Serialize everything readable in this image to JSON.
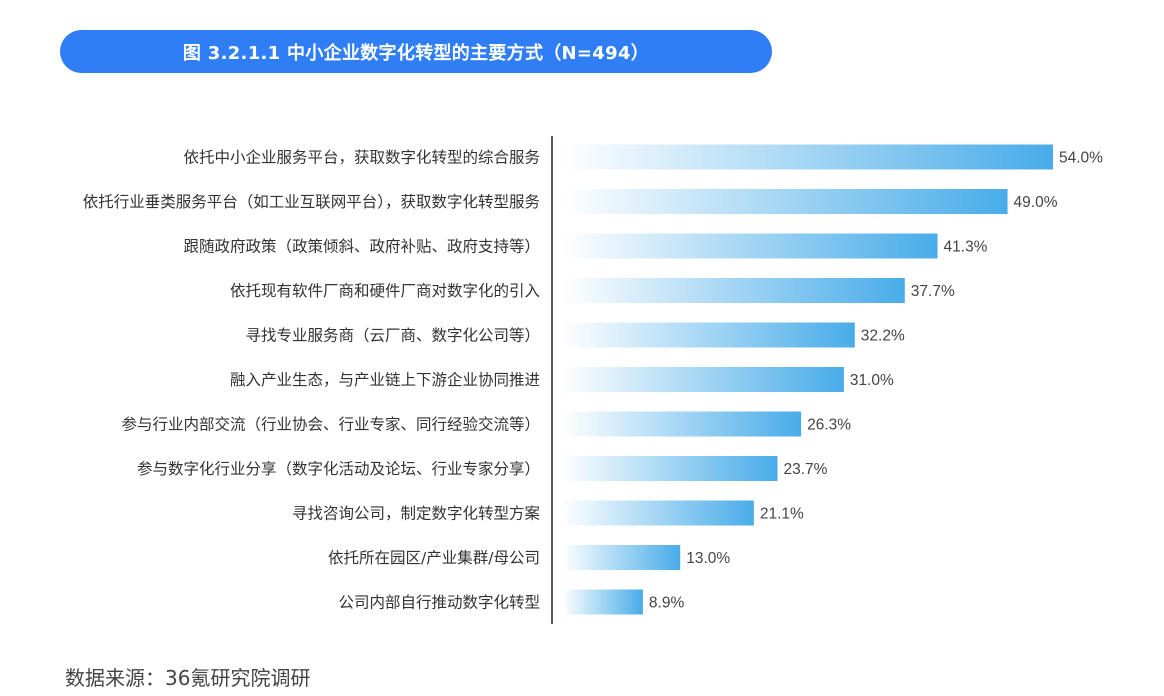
{
  "header": {
    "title": "图 3.2.1.1 中小企业数字化转型的主要方式（N=494）"
  },
  "chart_data": {
    "type": "bar",
    "orientation": "horizontal",
    "categories": [
      "依托中小企业服务平台，获取数字化转型的综合服务",
      "依托行业垂类服务平台（如工业互联网平台），获取数字化转型服务",
      "跟随政府政策（政策倾斜、政府补贴、政府支持等）",
      "依托现有软件厂商和硬件厂商对数字化的引入",
      "寻找专业服务商（云厂商、数字化公司等）",
      "融入产业生态，与产业链上下游企业协同推进",
      "参与行业内部交流（行业协会、行业专家、同行经验交流等）",
      "参与数字化行业分享（数字化活动及论坛、行业专家分享）",
      "寻找咨询公司，制定数字化转型方案",
      "依托所在园区/产业集群/母公司",
      "公司内部自行推动数字化转型"
    ],
    "values": [
      54.0,
      49.0,
      41.3,
      37.7,
      32.2,
      31.0,
      26.3,
      23.7,
      21.1,
      13.0,
      8.9
    ],
    "value_labels": [
      "54.0%",
      "49.0%",
      "41.3%",
      "37.7%",
      "32.2%",
      "31.0%",
      "26.3%",
      "23.7%",
      "21.1%",
      "13.0%",
      "8.9%"
    ],
    "unit": "%",
    "xlim": [
      0,
      54
    ],
    "grid": false,
    "legend": "none",
    "colors": {
      "bar_start": "#ffffff",
      "bar_end": "#48ace9",
      "axis": "#222222"
    }
  },
  "footer": {
    "source": "数据来源：36氪研究院调研"
  }
}
